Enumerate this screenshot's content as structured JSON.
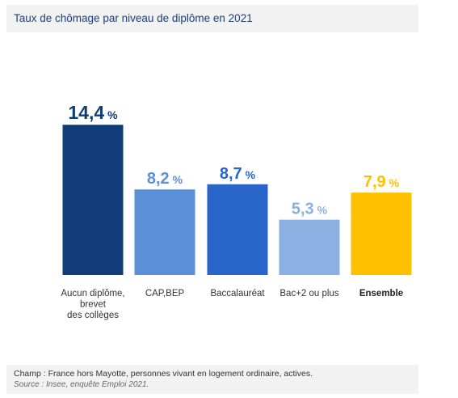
{
  "title": "Taux de chômage par niveau de diplôme en 2021",
  "footer": {
    "champ": "Champ : France hors Mayotte, personnes vivant en logement ordinaire, actives.",
    "source": "Source : Insee, enquête Emploi 2021."
  },
  "chart_data": {
    "type": "bar",
    "title": "Taux de chômage par niveau de diplôme en 2021",
    "xlabel": "",
    "ylabel": "",
    "unit": "%",
    "grid": false,
    "categories": [
      [
        "Aucun diplôme,",
        "brevet",
        "des collèges"
      ],
      [
        "CAP,BEP"
      ],
      [
        "Baccalauréat"
      ],
      [
        "Bac+2 ou plus"
      ],
      [
        "Ensemble"
      ]
    ],
    "values": [
      14.4,
      8.2,
      8.7,
      5.3,
      7.9
    ],
    "value_labels": [
      "14,4",
      "8,2",
      "8,7",
      "5,3",
      "7,9"
    ],
    "colors": [
      "#103d79",
      "#5b8fd8",
      "#2765c9",
      "#8db0e3",
      "#ffc000"
    ],
    "bold_categories": [
      false,
      false,
      false,
      false,
      true
    ]
  }
}
